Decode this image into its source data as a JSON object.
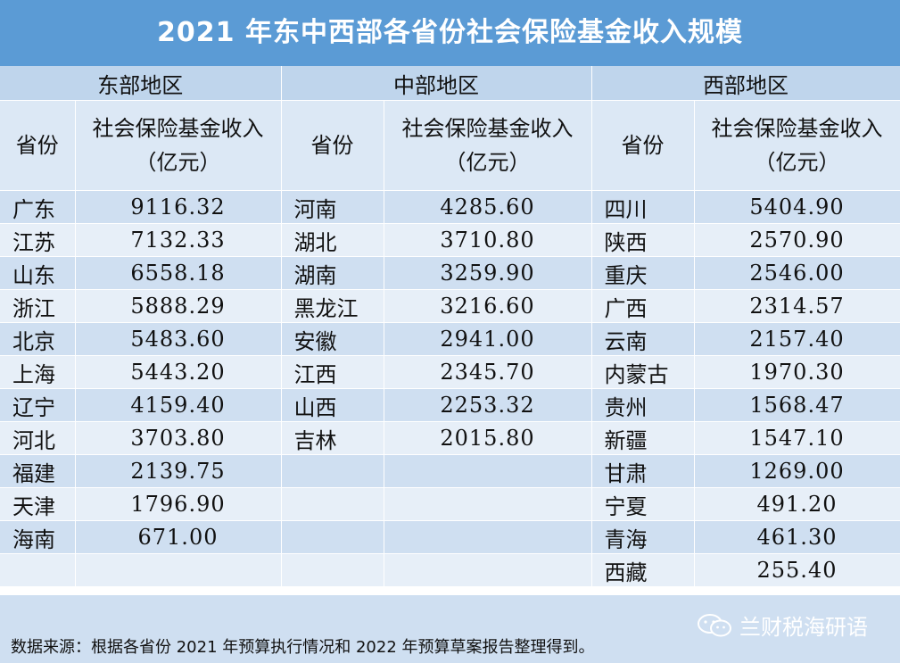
{
  "title": "2021 年东中西部各省份社会保险基金收入规模",
  "regions": [
    "东部地区",
    "中部地区",
    "西部地区"
  ],
  "col_province": "省份",
  "col_income_line1": "社会保险基金收入",
  "col_income_line2": "（亿元）",
  "east": [
    {
      "p": "广东",
      "v": "9116.32"
    },
    {
      "p": "江苏",
      "v": "7132.33"
    },
    {
      "p": "山东",
      "v": "6558.18"
    },
    {
      "p": "浙江",
      "v": "5888.29"
    },
    {
      "p": "北京",
      "v": "5483.60"
    },
    {
      "p": "上海",
      "v": "5443.20"
    },
    {
      "p": "辽宁",
      "v": "4159.40"
    },
    {
      "p": "河北",
      "v": "3703.80"
    },
    {
      "p": "福建",
      "v": "2139.75"
    },
    {
      "p": "天津",
      "v": "1796.90"
    },
    {
      "p": "海南",
      "v": "671.00"
    },
    {
      "p": "",
      "v": ""
    }
  ],
  "central": [
    {
      "p": "河南",
      "v": "4285.60"
    },
    {
      "p": "湖北",
      "v": "3710.80"
    },
    {
      "p": "湖南",
      "v": "3259.90"
    },
    {
      "p": "黑龙江",
      "v": "3216.60"
    },
    {
      "p": "安徽",
      "v": "2941.00"
    },
    {
      "p": "江西",
      "v": "2345.70"
    },
    {
      "p": "山西",
      "v": "2253.32"
    },
    {
      "p": "吉林",
      "v": "2015.80"
    },
    {
      "p": "",
      "v": ""
    },
    {
      "p": "",
      "v": ""
    },
    {
      "p": "",
      "v": ""
    },
    {
      "p": "",
      "v": ""
    }
  ],
  "west": [
    {
      "p": "四川",
      "v": "5404.90"
    },
    {
      "p": "陕西",
      "v": "2570.90"
    },
    {
      "p": "重庆",
      "v": "2546.00"
    },
    {
      "p": "广西",
      "v": "2314.57"
    },
    {
      "p": "云南",
      "v": "2157.40"
    },
    {
      "p": "内蒙古",
      "v": "1970.30"
    },
    {
      "p": "贵州",
      "v": "1568.47"
    },
    {
      "p": "新疆",
      "v": "1547.10"
    },
    {
      "p": "甘肃",
      "v": "1269.00"
    },
    {
      "p": "宁夏",
      "v": "491.20"
    },
    {
      "p": "青海",
      "v": "461.30"
    },
    {
      "p": "西藏",
      "v": "255.40"
    }
  ],
  "source_note": "数据来源：根据各省份 2021 年预算执行情况和 2022 年预算草案报告整理得到。",
  "watermark": "兰财税海研语",
  "colors": {
    "title_bg": "#5b9bd5",
    "row_odd": "#cfdff1",
    "row_even": "#e7eff8",
    "region_bg": "#bfd5ec"
  }
}
